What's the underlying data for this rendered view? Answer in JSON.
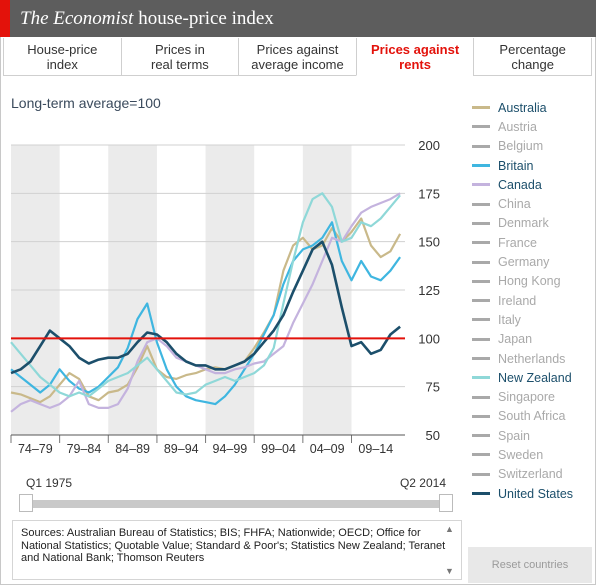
{
  "header": {
    "title_italic": "The Economist",
    "title_rest": " house-price index"
  },
  "tabs": [
    {
      "label_line1": "House-price",
      "label_line2": "index",
      "active": false
    },
    {
      "label_line1": "Prices in",
      "label_line2": "real terms",
      "active": false
    },
    {
      "label_line1": "Prices against",
      "label_line2": "average income",
      "active": false
    },
    {
      "label_line1": "Prices against",
      "label_line2": "rents",
      "active": true
    },
    {
      "label_line1": "Percentage",
      "label_line2": "change",
      "active": false
    }
  ],
  "subtitle": "Long-term average=100",
  "colors": {
    "Australia": "#c9b98a",
    "Britain": "#3fb6e0",
    "Canada": "#c4b3de",
    "New Zealand": "#8fd8d8",
    "United States": "#1c4f6b",
    "inactive": "#a9a9a9",
    "reference": "#e3120b",
    "band": "#ebebeb"
  },
  "legend": [
    {
      "name": "Australia",
      "active": true
    },
    {
      "name": "Austria",
      "active": false
    },
    {
      "name": "Belgium",
      "active": false
    },
    {
      "name": "Britain",
      "active": true
    },
    {
      "name": "Canada",
      "active": true
    },
    {
      "name": "China",
      "active": false
    },
    {
      "name": "Denmark",
      "active": false
    },
    {
      "name": "France",
      "active": false
    },
    {
      "name": "Germany",
      "active": false
    },
    {
      "name": "Hong Kong",
      "active": false
    },
    {
      "name": "Ireland",
      "active": false
    },
    {
      "name": "Italy",
      "active": false
    },
    {
      "name": "Japan",
      "active": false
    },
    {
      "name": "Netherlands",
      "active": false
    },
    {
      "name": "New Zealand",
      "active": true
    },
    {
      "name": "Singapore",
      "active": false
    },
    {
      "name": "South Africa",
      "active": false
    },
    {
      "name": "Spain",
      "active": false
    },
    {
      "name": "Sweden",
      "active": false
    },
    {
      "name": "Switzerland",
      "active": false
    },
    {
      "name": "United States",
      "active": true
    }
  ],
  "slider": {
    "start_label": "Q1 1975",
    "end_label": "Q2 2014"
  },
  "sources": "Sources: Australian Bureau of Statistics; BIS; FHFA; Nationwide; OECD; Office for National Statistics; Quotable Value; Standard & Poor's; Statistics New Zealand; Teranet and National Bank; Thomson Reuters",
  "reset_label": "Reset countries",
  "chart_data": {
    "type": "line",
    "title": "Prices against rents",
    "ylabel": "",
    "xlabel": "",
    "ylim": [
      50,
      200
    ],
    "xlim": [
      1974.0,
      2014.5
    ],
    "yticks": [
      50,
      75,
      100,
      125,
      150,
      175,
      200
    ],
    "x_period_labels": [
      "74–79",
      "79–84",
      "84–89",
      "89–94",
      "94–99",
      "99–04",
      "04–09",
      "09–14"
    ],
    "reference_line": 100,
    "legend_position": "right",
    "series": [
      {
        "name": "Australia",
        "x": [
          1974,
          1975,
          1976,
          1977,
          1978,
          1979,
          1980,
          1981,
          1982,
          1983,
          1984,
          1985,
          1986,
          1987,
          1988,
          1989,
          1990,
          1991,
          1992,
          1993,
          1994,
          1995,
          1996,
          1997,
          1998,
          1999,
          2000,
          2001,
          2002,
          2003,
          2004,
          2005,
          2006,
          2007,
          2008,
          2009,
          2010,
          2011,
          2012,
          2013,
          2014
        ],
        "values": [
          72,
          71,
          69,
          67,
          70,
          76,
          82,
          79,
          70,
          68,
          72,
          73,
          76,
          85,
          96,
          84,
          80,
          79,
          81,
          82,
          84,
          85,
          84,
          86,
          88,
          95,
          103,
          112,
          135,
          148,
          152,
          146,
          148,
          157,
          150,
          155,
          162,
          148,
          142,
          145,
          154
        ]
      },
      {
        "name": "Britain",
        "x": [
          1974,
          1975,
          1976,
          1977,
          1978,
          1979,
          1980,
          1981,
          1982,
          1983,
          1984,
          1985,
          1986,
          1987,
          1988,
          1989,
          1990,
          1991,
          1992,
          1993,
          1994,
          1995,
          1996,
          1997,
          1998,
          1999,
          2000,
          2001,
          2002,
          2003,
          2004,
          2005,
          2006,
          2007,
          2008,
          2009,
          2010,
          2011,
          2012,
          2013,
          2014
        ],
        "values": [
          84,
          80,
          76,
          72,
          76,
          84,
          78,
          74,
          72,
          75,
          80,
          85,
          95,
          110,
          118,
          98,
          84,
          75,
          70,
          68,
          67,
          66,
          70,
          76,
          84,
          92,
          102,
          112,
          128,
          140,
          146,
          148,
          152,
          160,
          140,
          130,
          140,
          132,
          130,
          135,
          142
        ]
      },
      {
        "name": "Canada",
        "x": [
          1974,
          1975,
          1976,
          1977,
          1978,
          1979,
          1980,
          1981,
          1982,
          1983,
          1984,
          1985,
          1986,
          1987,
          1988,
          1989,
          1990,
          1991,
          1992,
          1993,
          1994,
          1995,
          1996,
          1997,
          1998,
          1999,
          2000,
          2001,
          2002,
          2003,
          2004,
          2005,
          2006,
          2007,
          2008,
          2009,
          2010,
          2011,
          2012,
          2013,
          2014
        ],
        "values": [
          62,
          66,
          68,
          66,
          64,
          66,
          70,
          78,
          66,
          64,
          64,
          66,
          74,
          88,
          98,
          100,
          96,
          90,
          88,
          86,
          84,
          82,
          82,
          84,
          85,
          87,
          88,
          92,
          96,
          108,
          118,
          128,
          140,
          152,
          150,
          158,
          165,
          168,
          170,
          172,
          175
        ]
      },
      {
        "name": "New Zealand",
        "x": [
          1974,
          1975,
          1976,
          1977,
          1978,
          1979,
          1980,
          1981,
          1982,
          1983,
          1984,
          1985,
          1986,
          1987,
          1988,
          1989,
          1990,
          1991,
          1992,
          1993,
          1994,
          1995,
          1996,
          1997,
          1998,
          1999,
          2000,
          2001,
          2002,
          2003,
          2004,
          2005,
          2006,
          2007,
          2008,
          2009,
          2010,
          2011,
          2012,
          2013,
          2014
        ],
        "values": [
          98,
          92,
          86,
          80,
          76,
          72,
          70,
          72,
          70,
          74,
          78,
          80,
          82,
          86,
          90,
          84,
          78,
          72,
          71,
          72,
          76,
          78,
          80,
          78,
          80,
          82,
          86,
          95,
          118,
          140,
          160,
          172,
          175,
          168,
          150,
          152,
          160,
          158,
          162,
          168,
          174
        ]
      },
      {
        "name": "United States",
        "x": [
          1974,
          1975,
          1976,
          1977,
          1978,
          1979,
          1980,
          1981,
          1982,
          1983,
          1984,
          1985,
          1986,
          1987,
          1988,
          1989,
          1990,
          1991,
          1992,
          1993,
          1994,
          1995,
          1996,
          1997,
          1998,
          1999,
          2000,
          2001,
          2002,
          2003,
          2004,
          2005,
          2006,
          2007,
          2008,
          2009,
          2010,
          2011,
          2012,
          2013,
          2014
        ],
        "values": [
          82,
          84,
          88,
          96,
          104,
          100,
          96,
          90,
          87,
          89,
          90,
          90,
          92,
          98,
          103,
          102,
          98,
          92,
          88,
          86,
          86,
          84,
          84,
          86,
          88,
          92,
          98,
          104,
          112,
          124,
          135,
          146,
          150,
          138,
          116,
          96,
          98,
          92,
          94,
          102,
          106
        ]
      }
    ]
  }
}
